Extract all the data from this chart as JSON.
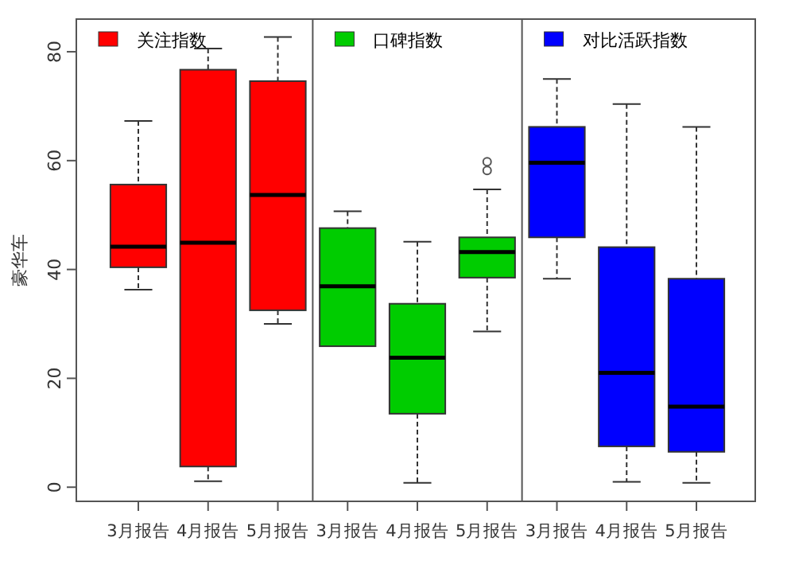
{
  "chart_data": {
    "type": "box",
    "ylabel": "豪华车",
    "categories": [
      "3月报告",
      "4月报告",
      "5月报告",
      "3月报告",
      "4月报告",
      "5月报告",
      "3月报告",
      "4月报告",
      "5月报告"
    ],
    "ylim": [
      -2.6,
      86
    ],
    "yticks": [
      0,
      20,
      40,
      60,
      80
    ],
    "legend": "top",
    "grid": false,
    "series": [
      {
        "name": "关注指数",
        "color": "#ff0000",
        "boxes": [
          {
            "low": 36.3,
            "q1": 40.4,
            "median": 44.2,
            "q3": 55.6,
            "high": 67.3
          },
          {
            "low": 1.1,
            "q1": 3.8,
            "median": 44.9,
            "q3": 76.7,
            "high": 80.6
          },
          {
            "low": 30,
            "q1": 32.5,
            "median": 53.7,
            "q3": 74.6,
            "high": 82.7
          },
          null,
          null,
          null,
          null,
          null,
          null
        ]
      },
      {
        "name": "口碑指数",
        "color": "#00cc00",
        "boxes": [
          null,
          null,
          null,
          {
            "low": 25.9,
            "q1": 25.9,
            "median": 36.9,
            "q3": 47.6,
            "high": 50.7
          },
          {
            "low": 0.8,
            "q1": 13.5,
            "median": 23.8,
            "q3": 33.7,
            "high": 45.1
          },
          {
            "low": 28.6,
            "q1": 38.5,
            "median": 43.2,
            "q3": 45.9,
            "high": 54.7,
            "outliers": [
              59.8,
              58.2
            ]
          },
          null,
          null,
          null
        ]
      },
      {
        "name": "对比活跃指数",
        "color": "#0000ff",
        "boxes": [
          null,
          null,
          null,
          null,
          null,
          null,
          {
            "low": 38.3,
            "q1": 45.9,
            "median": 59.6,
            "q3": 66.2,
            "high": 75
          },
          {
            "low": 1,
            "q1": 7.5,
            "median": 21,
            "q3": 44.1,
            "high": 70.4
          },
          {
            "low": 0.8,
            "q1": 6.5,
            "median": 14.8,
            "q3": 38.3,
            "high": 66.2
          }
        ]
      }
    ]
  }
}
